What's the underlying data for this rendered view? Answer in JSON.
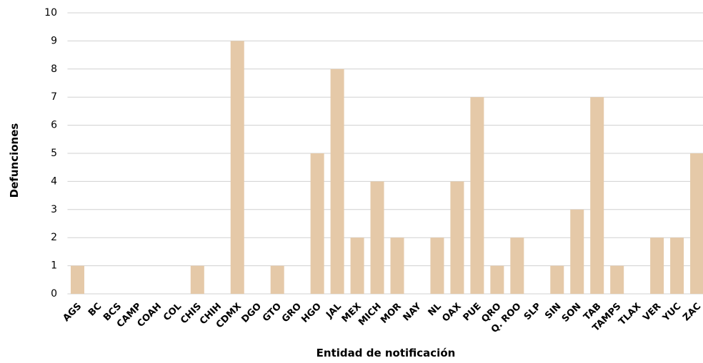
{
  "chart_data": {
    "type": "bar",
    "x_label": "Entidad de notificación",
    "y_label": "Defunciones",
    "categories": [
      "AGS",
      "BC",
      "BCS",
      "CAMP",
      "COAH",
      "COL",
      "CHIS",
      "CHIH",
      "CDMX",
      "DGO",
      "GTO",
      "GRO",
      "HGO",
      "JAL",
      "MEX",
      "MICH",
      "MOR",
      "NAY",
      "NL",
      "OAX",
      "PUE",
      "QRO",
      "Q. ROO",
      "SLP",
      "SIN",
      "SON",
      "TAB",
      "TAMPS",
      "TLAX",
      "VER",
      "YUC",
      "ZAC"
    ],
    "values": [
      1,
      0,
      0,
      0,
      0,
      0,
      1,
      0,
      9,
      0,
      1,
      0,
      5,
      8,
      2,
      4,
      2,
      0,
      2,
      4,
      7,
      1,
      2,
      0,
      1,
      3,
      7,
      1,
      0,
      2,
      2,
      5
    ],
    "color": "#e5c9a8",
    "ylim": [
      0,
      10
    ],
    "yticks": [
      0,
      1,
      2,
      3,
      4,
      5,
      6,
      7,
      8,
      9,
      10
    ],
    "grid": true
  }
}
